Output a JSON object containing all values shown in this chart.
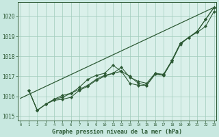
{
  "bg_color": "#c8e8e0",
  "plot_bg_color": "#daf0ea",
  "grid_color": "#a0ccbb",
  "line_color": "#2d5a35",
  "marker_color": "#2d5a35",
  "xlabel": "Graphe pression niveau de la mer (hPa)",
  "xlim": [
    -0.3,
    23.3
  ],
  "ylim": [
    1014.8,
    1020.7
  ],
  "yticks": [
    1015,
    1016,
    1017,
    1018,
    1019,
    1020
  ],
  "xticks": [
    0,
    1,
    2,
    3,
    4,
    5,
    6,
    7,
    8,
    9,
    10,
    11,
    12,
    13,
    14,
    15,
    16,
    17,
    18,
    19,
    20,
    21,
    22,
    23
  ],
  "series1": [
    1016.3,
    1015.3,
    1015.6,
    1015.8,
    1015.85,
    1015.95,
    1016.3,
    1016.5,
    1016.8,
    1017.0,
    1017.15,
    1017.25,
    1017.0,
    1016.65,
    1016.55,
    1017.1,
    1017.05,
    1017.75,
    1018.6,
    1018.95,
    1019.2,
    1019.5,
    1020.25
  ],
  "series2": [
    1016.3,
    1015.3,
    1015.6,
    1015.85,
    1015.95,
    1016.15,
    1016.45,
    1016.85,
    1017.05,
    1017.15,
    1017.55,
    1017.25,
    1016.65,
    1016.55,
    1016.55,
    1017.15,
    1017.05,
    1017.8,
    1018.65,
    1018.95,
    1019.25,
    1019.85,
    1020.45
  ],
  "series3": [
    1016.3,
    1015.3,
    1015.6,
    1015.85,
    1016.05,
    1016.15,
    1016.35,
    1016.55,
    1016.85,
    1017.05,
    1017.15,
    1017.45,
    1016.95,
    1016.75,
    1016.65,
    1017.15,
    1017.1,
    1017.8,
    1018.65,
    1018.95,
    1019.25,
    1019.85,
    1020.45
  ],
  "series4_x": [
    0,
    23
  ],
  "series4_y": [
    1015.9,
    1020.45
  ]
}
